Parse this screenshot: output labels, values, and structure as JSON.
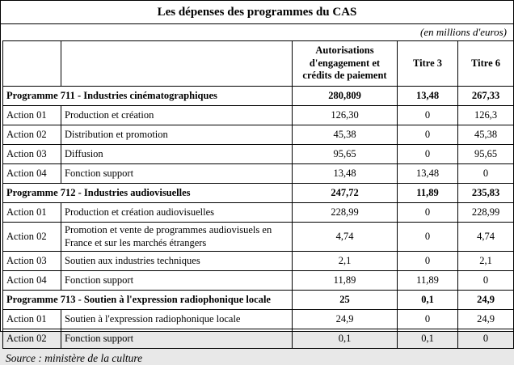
{
  "page": {
    "title": "Les dépenses des programmes du CAS",
    "unit_note": "(en millions d'euros)",
    "source": "Source : ministère de la culture"
  },
  "table": {
    "headers": [
      "Autorisations d'engagement et crédits de paiement",
      "Titre 3",
      "Titre 6"
    ],
    "rows": [
      {
        "type": "programme",
        "code": "",
        "label": "Programme 711 - Industries cinématographiques",
        "values": [
          "280,809",
          "13,48",
          "267,33"
        ]
      },
      {
        "type": "action",
        "code": "Action 01",
        "label": "Production et création",
        "values": [
          "126,30",
          "0",
          "126,3"
        ]
      },
      {
        "type": "action",
        "code": "Action 02",
        "label": "Distribution et promotion",
        "values": [
          "45,38",
          "0",
          "45,38"
        ]
      },
      {
        "type": "action",
        "code": "Action 03",
        "label": "Diffusion",
        "values": [
          "95,65",
          "0",
          "95,65"
        ]
      },
      {
        "type": "action",
        "code": "Action 04",
        "label": "Fonction support",
        "values": [
          "13,48",
          "13,48",
          "0"
        ]
      },
      {
        "type": "programme",
        "code": "",
        "label": "Programme 712 - Industries audiovisuelles",
        "values": [
          "247,72",
          "11,89",
          "235,83"
        ]
      },
      {
        "type": "action",
        "code": "Action 01",
        "label": "Production et création audiovisuelles",
        "values": [
          "228,99",
          "0",
          "228,99"
        ]
      },
      {
        "type": "action",
        "code": "Action 02",
        "label": "Promotion et vente de programmes audiovisuels en France et sur les marchés étrangers",
        "values": [
          "4,74",
          "0",
          "4,74"
        ]
      },
      {
        "type": "action",
        "code": "Action 03",
        "label": "Soutien aux industries techniques",
        "values": [
          "2,1",
          "0",
          "2,1"
        ]
      },
      {
        "type": "action",
        "code": "Action 04",
        "label": "Fonction support",
        "values": [
          "11,89",
          "11,89",
          "0"
        ]
      },
      {
        "type": "programme",
        "code": "",
        "label": "Programme 713 - Soutien à l'expression radiophonique locale",
        "values": [
          "25",
          "0,1",
          "24,9"
        ]
      },
      {
        "type": "action",
        "code": "Action 01",
        "label": "Soutien à l'expression radiophonique locale",
        "values": [
          "24,9",
          "0",
          "24,9"
        ]
      },
      {
        "type": "action",
        "code": "Action 02",
        "label": "Fonction support",
        "values": [
          "0,1",
          "0,1",
          "0"
        ]
      }
    ]
  }
}
